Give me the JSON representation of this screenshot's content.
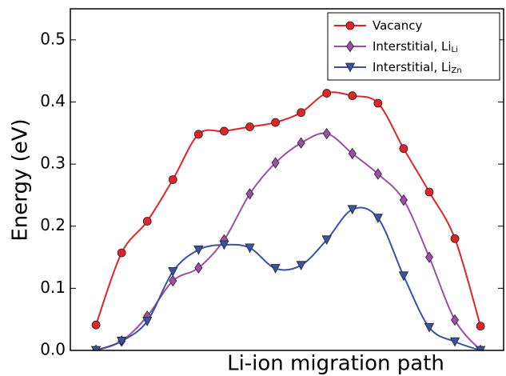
{
  "chart_data": {
    "type": "line",
    "xlabel": "Li-ion migration path",
    "ylabel": "Energy (eV)",
    "x": [
      1,
      2,
      3,
      4,
      5,
      6,
      7,
      8,
      9,
      10,
      11,
      12,
      13,
      14,
      15,
      16
    ],
    "xlim": [
      0,
      16.9
    ],
    "ylim": [
      0,
      0.55
    ],
    "yticks": [
      {
        "value": 0,
        "label": "0.0"
      },
      0.1,
      0.2,
      0.3,
      0.4,
      0.5
    ],
    "grid": false,
    "legend": "upper right",
    "series": [
      {
        "name": "Vacancy",
        "color": "#e0242a",
        "marker": "circle",
        "values": [
          0.041,
          0.157,
          0.208,
          0.275,
          0.348,
          0.353,
          0.36,
          0.367,
          0.383,
          0.414,
          0.41,
          0.398,
          0.325,
          0.255,
          0.18,
          0.039
        ]
      },
      {
        "name": "Interstitial, Li",
        "name_sub": "Li",
        "color": "#9c4fa8",
        "marker": "diamond",
        "values": [
          0.0,
          0.015,
          0.055,
          0.112,
          0.133,
          0.178,
          0.252,
          0.302,
          0.334,
          0.349,
          0.317,
          0.284,
          0.242,
          0.15,
          0.049,
          0.0
        ]
      },
      {
        "name": "Interstitial, Li",
        "name_sub": "Zn",
        "color": "#3a52a4",
        "marker": "triangle",
        "values": [
          0.0,
          0.015,
          0.047,
          0.127,
          0.162,
          0.17,
          0.165,
          0.132,
          0.137,
          0.178,
          0.227,
          0.213,
          0.12,
          0.037,
          0.014,
          0.0
        ]
      }
    ]
  }
}
